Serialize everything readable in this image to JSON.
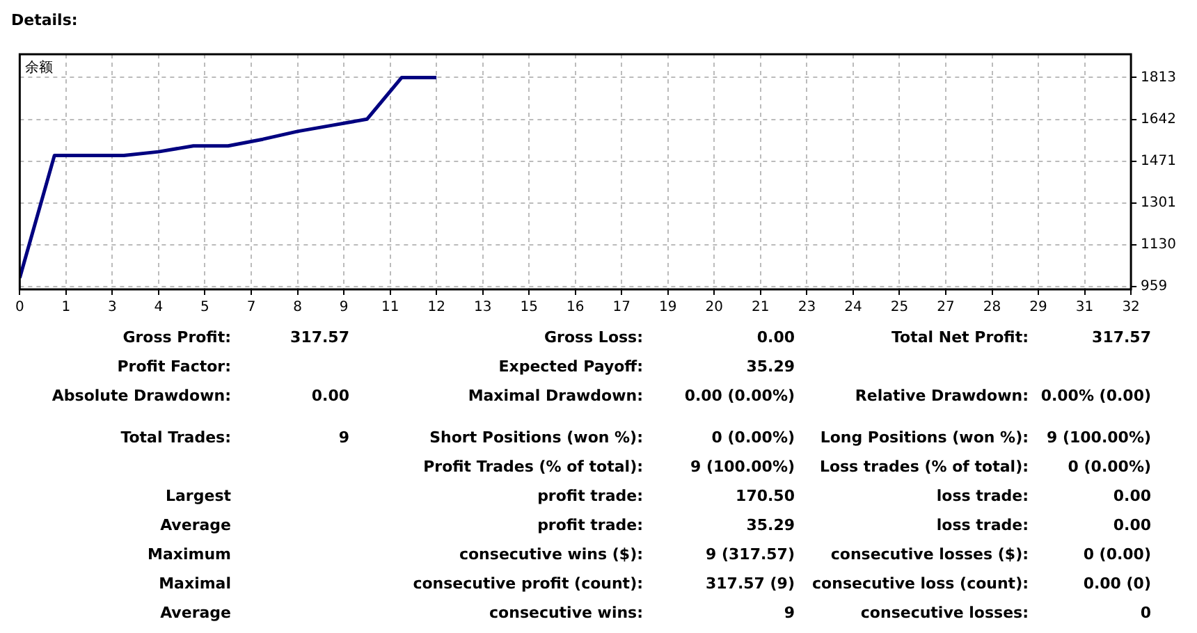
{
  "chart_data": {
    "type": "line",
    "title": "Details:",
    "subtitle": "余额",
    "x": [
      0,
      1,
      2,
      3,
      4,
      5,
      6,
      7,
      8,
      9,
      10,
      11,
      12
    ],
    "series": [
      {
        "color": "#000080",
        "values": [
          995,
          1495,
          1495,
          1495,
          1510,
          1534,
          1534,
          1561,
          1593,
          1618,
          1643,
          1813,
          1813
        ]
      }
    ],
    "xlim": [
      0,
      32
    ],
    "xticks": [
      0,
      {
        "value": 1.333,
        "label": "1"
      },
      {
        "value": 2.667,
        "label": "3"
      },
      4,
      {
        "value": 5.333,
        "label": "5"
      },
      {
        "value": 6.667,
        "label": "7"
      },
      8,
      {
        "value": 9.333,
        "label": "9"
      },
      {
        "value": 10.667,
        "label": "11"
      },
      12,
      {
        "value": 13.333,
        "label": "13"
      },
      {
        "value": 14.667,
        "label": "15"
      },
      16,
      {
        "value": 17.333,
        "label": "17"
      },
      {
        "value": 18.667,
        "label": "19"
      },
      20,
      {
        "value": 21.333,
        "label": "21"
      },
      {
        "value": 22.667,
        "label": "23"
      },
      24,
      {
        "value": 25.333,
        "label": "25"
      },
      {
        "value": 26.667,
        "label": "27"
      },
      28,
      {
        "value": 29.333,
        "label": "29"
      },
      {
        "value": 30.667,
        "label": "31"
      },
      32
    ],
    "ylim": [
      948,
      1908
    ],
    "yticks": [
      959,
      1130,
      1301,
      1471,
      1642,
      1813
    ],
    "grid": true,
    "legend": false,
    "marker": "none",
    "line_style": "solid",
    "annotations": [
      "Gross Profit:",
      "317.57",
      "Gross Loss:",
      "0.00",
      "Total Net Profit:",
      "317.57",
      "Profit Factor:",
      "Expected Payoff:",
      "35.29",
      "Absolute Drawdown:",
      "0.00",
      "Maximal Drawdown:",
      "0.00 (0.00%)",
      "Relative Drawdown:",
      "0.00% (0.00)",
      "Total Trades:",
      "9",
      "Short Positions (won %):",
      "0 (0.00%)",
      "Long Positions (won %):",
      "9 (100.00%)",
      "Profit Trades (% of total):",
      "9 (100.00%)",
      "Loss trades (% of total):",
      "0 (0.00%)",
      "Largest",
      "profit trade:",
      "170.50",
      "loss trade:",
      "0.00",
      "Average",
      "profit trade:",
      "35.29",
      "loss trade:",
      "0.00",
      "Maximum",
      "consecutive wins ($):",
      "9 (317.57)",
      "consecutive losses ($):",
      "0 (0.00)",
      "Maximal",
      "consecutive profit (count):",
      "317.57 (9)",
      "consecutive loss (count):",
      "0.00 (0)",
      "Average",
      "consecutive wins:",
      "9",
      "consecutive losses:",
      "0"
    ]
  }
}
